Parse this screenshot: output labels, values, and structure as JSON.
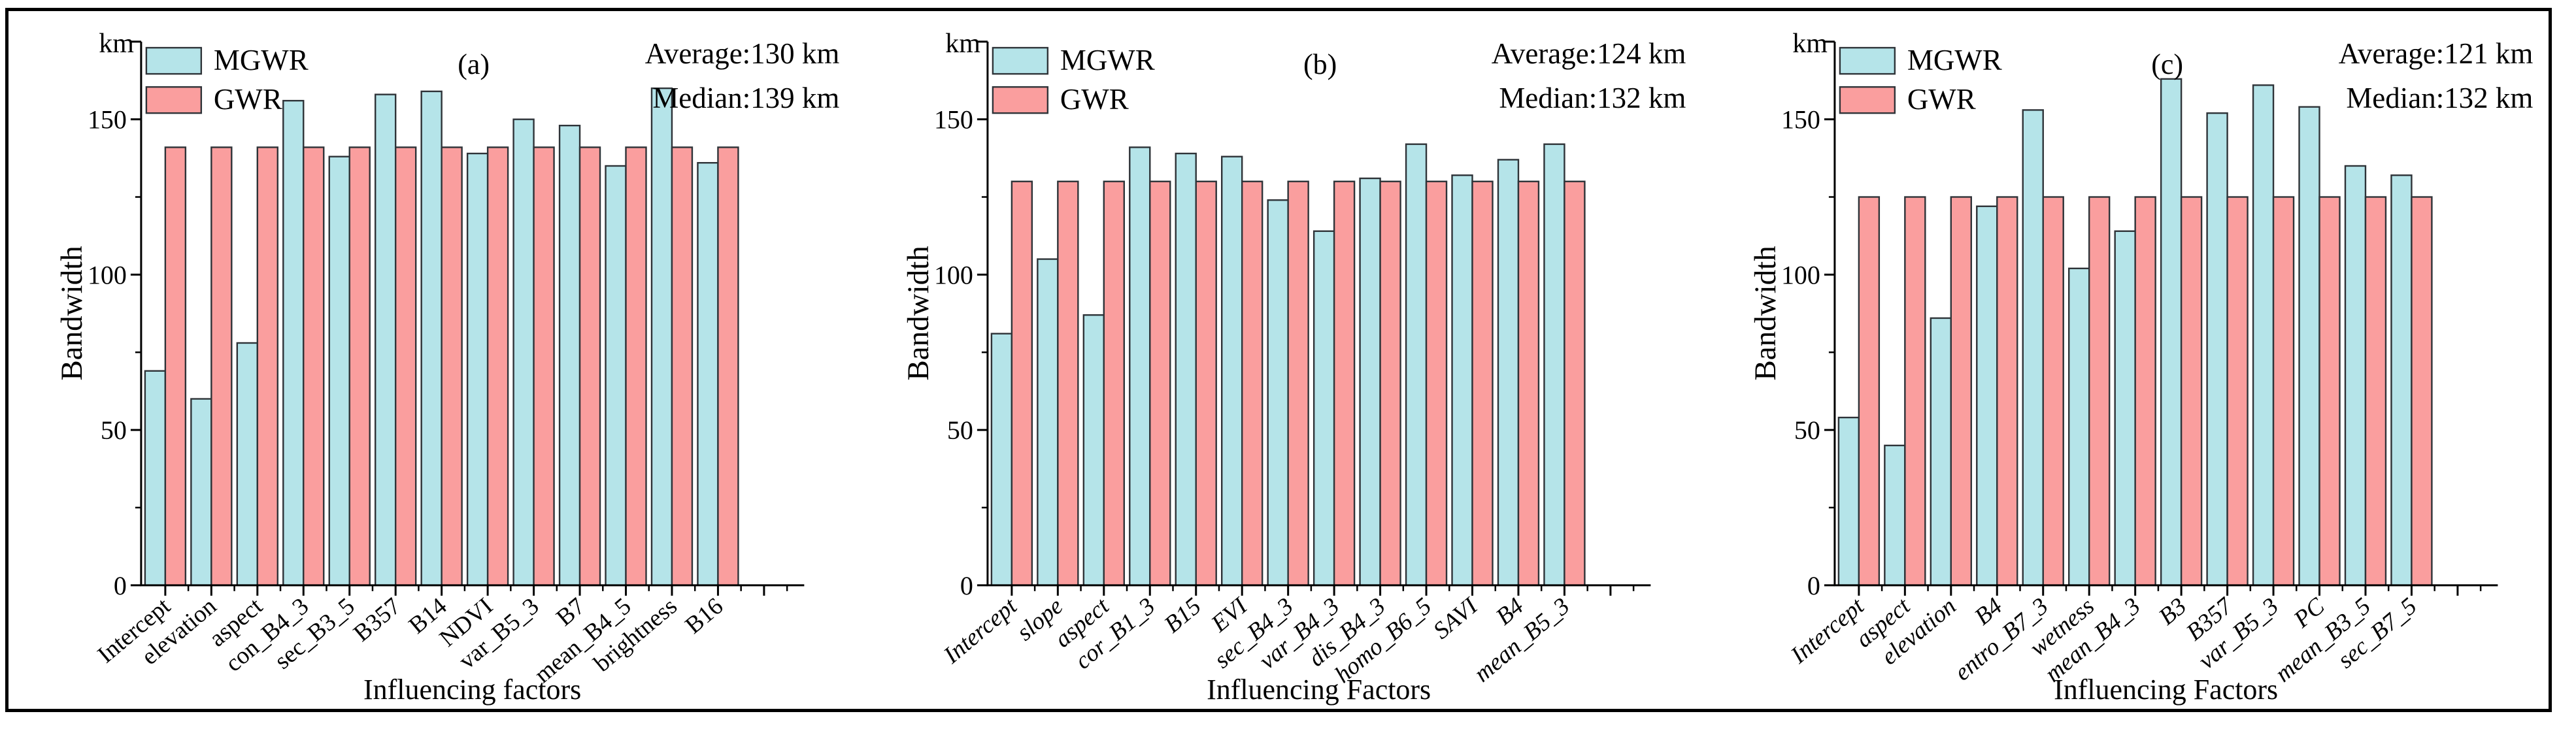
{
  "figure": {
    "kind": "three-panel grouped bar figure",
    "background": "#ffffff",
    "frame_color": "#000000",
    "text_color": "#000000",
    "colors": {
      "mgwr_fill": "#b5e4e9",
      "gwr_fill": "#fa9e9e",
      "bar_edge": "#2e3338",
      "axis": "#000000"
    },
    "legend_labels": [
      "MGWR",
      "GWR"
    ]
  },
  "chart_data": [
    {
      "type": "bar",
      "panel_label": "(a)",
      "annotations": {
        "average": "Average:130 km",
        "median": "Median:139 km"
      },
      "xlabel": "Influencing factors",
      "ylabel": "Bandwidth",
      "y_unit_label": "km",
      "yticks": [
        0,
        50,
        100,
        150
      ],
      "yticks_minor": [
        25,
        75,
        125
      ],
      "ylim": [
        0,
        175
      ],
      "grid": false,
      "legend_position": "top-left",
      "xtick_italic": false,
      "categories": [
        "Intercept",
        "elevation",
        "aspect",
        "con_B4_3",
        "sec_B3_5",
        "B357",
        "B14",
        "NDVI",
        "var_B5_3",
        "B7",
        "mean_B4_5",
        "brightness",
        "B16"
      ],
      "series": [
        {
          "name": "MGWR",
          "color": "#b5e4e9",
          "values": [
            69,
            60,
            78,
            156,
            138,
            158,
            159,
            139,
            150,
            148,
            135,
            160,
            136
          ]
        },
        {
          "name": "GWR",
          "color": "#fa9e9e",
          "values": [
            141,
            141,
            141,
            141,
            141,
            141,
            141,
            141,
            141,
            141,
            141,
            141,
            141
          ]
        }
      ]
    },
    {
      "type": "bar",
      "panel_label": "(b)",
      "annotations": {
        "average": "Average:124 km",
        "median": "Median:132 km"
      },
      "xlabel": "Influencing Factors",
      "ylabel": "Bandwidth",
      "y_unit_label": "km",
      "yticks": [
        0,
        50,
        100,
        150
      ],
      "yticks_minor": [
        25,
        75,
        125
      ],
      "ylim": [
        0,
        175
      ],
      "grid": false,
      "legend_position": "top-left",
      "xtick_italic": true,
      "categories": [
        "Intercept",
        "slope",
        "aspect",
        "cor_B1_3",
        "B15",
        "EVI",
        "sec_B4_3",
        "var_B4_3",
        "dis_B4_3",
        "homo_B6_5",
        "SAVI",
        "B4",
        "mean_B5_3"
      ],
      "series": [
        {
          "name": "MGWR",
          "color": "#b5e4e9",
          "values": [
            81,
            105,
            87,
            141,
            139,
            138,
            124,
            114,
            131,
            142,
            132,
            137,
            142
          ]
        },
        {
          "name": "GWR",
          "color": "#fa9e9e",
          "values": [
            130,
            130,
            130,
            130,
            130,
            130,
            130,
            130,
            130,
            130,
            130,
            130,
            130
          ]
        }
      ]
    },
    {
      "type": "bar",
      "panel_label": "(c)",
      "annotations": {
        "average": "Average:121 km",
        "median": "Median:132 km"
      },
      "xlabel": "Influencing Factors",
      "ylabel": "Bandwidth",
      "y_unit_label": "km",
      "yticks": [
        0,
        50,
        100,
        150
      ],
      "yticks_minor": [
        25,
        75,
        125
      ],
      "ylim": [
        0,
        175
      ],
      "grid": false,
      "legend_position": "top-left",
      "xtick_italic": true,
      "categories": [
        "Intercept",
        "aspect",
        "elevation",
        "B4",
        "entro_B7_3",
        "wetness",
        "mean_B4_3",
        "B3",
        "B357",
        "var_B5_3",
        "PC",
        "mean_B3_5",
        "sec_B7_5"
      ],
      "series": [
        {
          "name": "MGWR",
          "color": "#b5e4e9",
          "values": [
            54,
            45,
            86,
            122,
            153,
            102,
            114,
            163,
            152,
            161,
            154,
            135,
            132
          ]
        },
        {
          "name": "GWR",
          "color": "#fa9e9e",
          "values": [
            125,
            125,
            125,
            125,
            125,
            125,
            125,
            125,
            125,
            125,
            125,
            125,
            125
          ]
        }
      ]
    }
  ]
}
